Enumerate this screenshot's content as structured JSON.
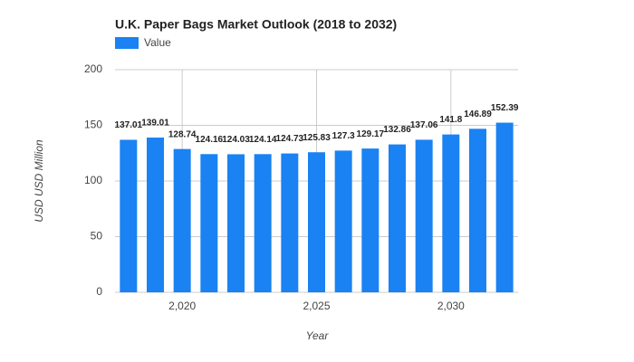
{
  "chart_data": {
    "type": "bar",
    "title": "U.K.  Paper Bags Market Outlook (2018 to 2032)",
    "x_label": "Year",
    "y_label": "USD USD Million",
    "x": [
      2018,
      2019,
      2020,
      2021,
      2022,
      2023,
      2024,
      2025,
      2026,
      2027,
      2028,
      2029,
      2030,
      2031,
      2032
    ],
    "series": [
      {
        "name": "Value",
        "color": "#1a82f2",
        "values": [
          137.01,
          139.01,
          128.74,
          124.16,
          124.03,
          124.14,
          124.73,
          125.83,
          127.3,
          129.17,
          132.86,
          137.06,
          141.8,
          146.89,
          152.39
        ]
      }
    ],
    "xlim": [
      2017.5,
      2032.5
    ],
    "xticks": [
      {
        "value": 2020,
        "label": "2,020"
      },
      {
        "value": 2025,
        "label": "2,025"
      },
      {
        "value": 2030,
        "label": "2,030"
      }
    ],
    "ylim": [
      0,
      200
    ],
    "yticks": [
      0,
      50,
      100,
      150,
      200
    ],
    "grid": true
  }
}
